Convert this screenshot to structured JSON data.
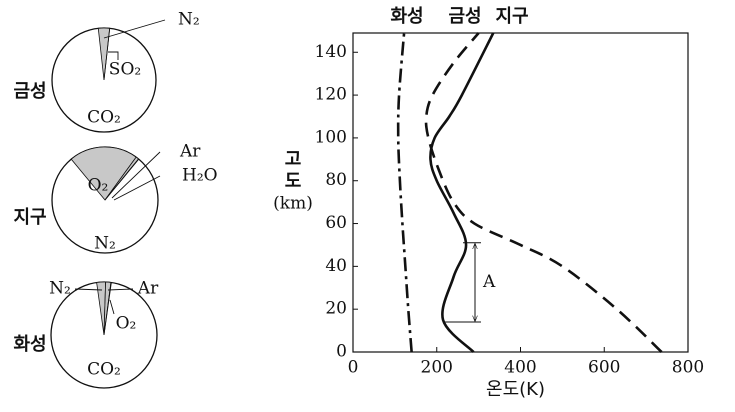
{
  "chart_data": [
    {
      "type": "pie",
      "title": "금성",
      "categories": [
        "CO₂",
        "N₂",
        "SO₂"
      ],
      "values": [
        96.5,
        3.5,
        0.015
      ],
      "colors": [
        "#ffffff",
        "#c8c8c8",
        "#c8c8c8"
      ]
    },
    {
      "type": "pie",
      "title": "지구",
      "categories": [
        "N₂",
        "O₂",
        "Ar",
        "H₂O"
      ],
      "values": [
        78,
        21,
        0.9,
        0.1
      ],
      "colors": [
        "#ffffff",
        "#c8c8c8",
        "#c8c8c8",
        "#c8c8c8"
      ]
    },
    {
      "type": "pie",
      "title": "화성",
      "categories": [
        "CO₂",
        "N₂",
        "Ar",
        "O₂"
      ],
      "values": [
        95.3,
        2.7,
        1.6,
        0.13
      ],
      "colors": [
        "#ffffff",
        "#c8c8c8",
        "#c8c8c8",
        "#c8c8c8"
      ]
    },
    {
      "type": "line",
      "xlabel": "온도(K)",
      "ylabel": [
        "고",
        "도",
        "(km)"
      ],
      "xlim": [
        0,
        800
      ],
      "xticks": [
        0,
        200,
        400,
        600,
        800
      ],
      "ylim": [
        0,
        149
      ],
      "yticks": [
        0,
        20,
        40,
        60,
        80,
        100,
        120,
        140
      ],
      "series": [
        {
          "name": "화성",
          "color": "#111111",
          "dash": "14 5 3 5",
          "x": [
            140,
            132,
            125,
            118,
            112,
            108,
            110,
            122
          ],
          "values": [
            0,
            20,
            40,
            60,
            80,
            100,
            120,
            149
          ]
        },
        {
          "name": "금성",
          "color": "#111111",
          "dash": "14 8",
          "x": [
            737,
            630,
            500,
            400,
            290,
            240,
            205,
            180,
            175,
            190,
            240,
            300
          ],
          "values": [
            0,
            20,
            40,
            50,
            60,
            70,
            85,
            100,
            110,
            120,
            135,
            149
          ]
        },
        {
          "name": "지구",
          "color": "#111111",
          "dash": "",
          "x": [
            288,
            215,
            240,
            270,
            240,
            200,
            185,
            195,
            230,
            260,
            335
          ],
          "values": [
            0,
            15,
            35,
            50,
            65,
            80,
            90,
            100,
            110,
            120,
            149
          ]
        }
      ],
      "annotation": {
        "text": "A",
        "range": [
          14,
          51
        ]
      }
    }
  ]
}
